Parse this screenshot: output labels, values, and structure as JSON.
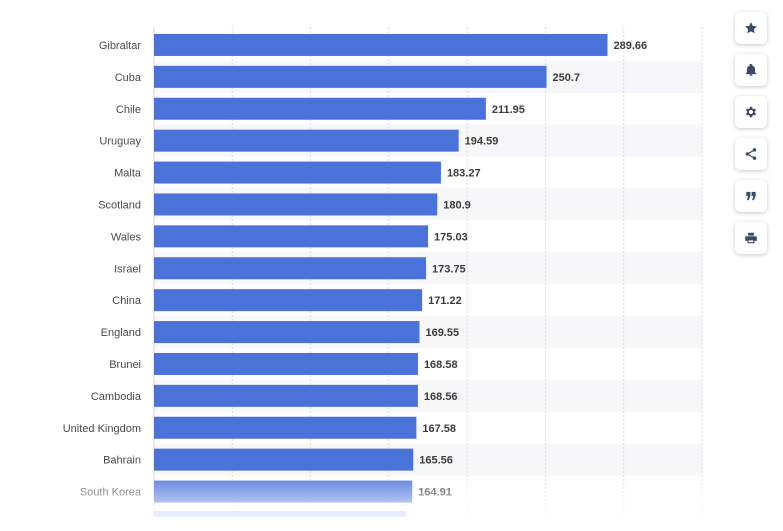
{
  "chart_data": {
    "type": "bar",
    "orientation": "horizontal",
    "categories": [
      "Gibraltar",
      "Cuba",
      "Chile",
      "Uruguay",
      "Malta",
      "Scotland",
      "Wales",
      "Israel",
      "China",
      "England",
      "Brunei",
      "Cambodia",
      "United Kingdom",
      "Bahrain",
      "South Korea"
    ],
    "values": [
      289.66,
      250.7,
      211.95,
      194.59,
      183.27,
      180.9,
      175.03,
      173.75,
      171.22,
      169.55,
      168.58,
      168.56,
      167.58,
      165.56,
      164.91
    ],
    "value_labels": [
      "289.66",
      "250.7",
      "211.95",
      "194.59",
      "183.27",
      "180.9",
      "175.03",
      "173.75",
      "171.22",
      "169.55",
      "168.58",
      "168.56",
      "167.58",
      "165.56",
      "164.91"
    ],
    "xlim": [
      0,
      350
    ],
    "grid": true,
    "bar_color": "#4a72d9"
  },
  "toolbar": {
    "buttons": [
      {
        "name": "favorite-button",
        "icon": "star-icon"
      },
      {
        "name": "notification-button",
        "icon": "bell-icon"
      },
      {
        "name": "settings-button",
        "icon": "gear-icon"
      },
      {
        "name": "share-button",
        "icon": "share-icon"
      },
      {
        "name": "cite-button",
        "icon": "quote-icon"
      },
      {
        "name": "print-button",
        "icon": "print-icon"
      }
    ]
  }
}
